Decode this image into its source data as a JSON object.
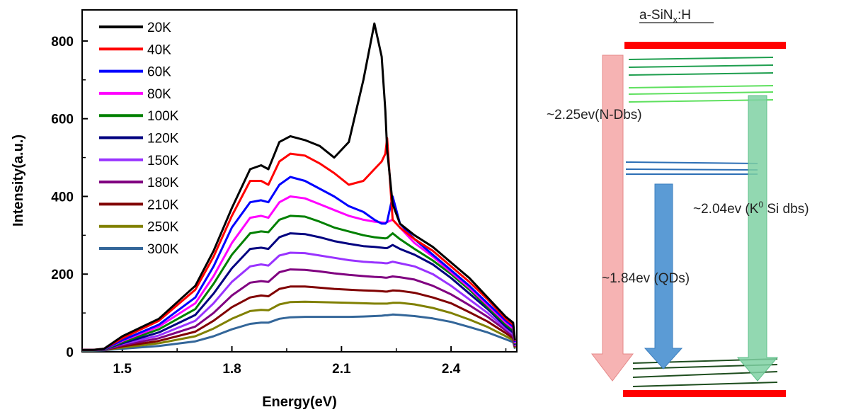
{
  "chart_data": {
    "type": "line",
    "xlabel": "Energy(eV)",
    "ylabel": "Intensity(a.u.)",
    "xlim": [
      1.39,
      2.58
    ],
    "ylim": [
      0,
      880
    ],
    "xticks": [
      "1.5",
      "1.8",
      "2.1",
      "2.4"
    ],
    "yticks": [
      "0",
      "200",
      "400",
      "600",
      "800"
    ],
    "x": [
      1.39,
      1.42,
      1.45,
      1.5,
      1.6,
      1.7,
      1.75,
      1.8,
      1.85,
      1.88,
      1.9,
      1.93,
      1.96,
      2.0,
      2.04,
      2.08,
      2.12,
      2.16,
      2.19,
      2.21,
      2.22,
      2.225,
      2.24,
      2.26,
      2.3,
      2.35,
      2.4,
      2.45,
      2.5,
      2.55,
      2.57,
      2.575
    ],
    "series": [
      {
        "name": "20K",
        "color": "#000000",
        "values": [
          5,
          5,
          8,
          40,
          85,
          170,
          260,
          370,
          470,
          480,
          470,
          540,
          555,
          545,
          530,
          500,
          540,
          700,
          845,
          760,
          620,
          520,
          380,
          330,
          300,
          270,
          230,
          190,
          140,
          90,
          75,
          30
        ]
      },
      {
        "name": "40K",
        "color": "#ff0000",
        "values": [
          5,
          5,
          8,
          35,
          80,
          160,
          245,
          350,
          440,
          440,
          430,
          490,
          510,
          505,
          485,
          460,
          430,
          440,
          470,
          490,
          510,
          550,
          340,
          320,
          290,
          260,
          220,
          180,
          135,
          85,
          70,
          28
        ]
      },
      {
        "name": "60K",
        "color": "#0000ff",
        "values": [
          5,
          5,
          7,
          30,
          70,
          140,
          220,
          320,
          385,
          390,
          385,
          430,
          450,
          440,
          420,
          400,
          375,
          360,
          340,
          330,
          330,
          335,
          400,
          330,
          290,
          250,
          210,
          170,
          125,
          80,
          65,
          25
        ]
      },
      {
        "name": "80K",
        "color": "#ff00ff",
        "values": [
          5,
          5,
          7,
          28,
          65,
          125,
          195,
          280,
          345,
          350,
          345,
          385,
          400,
          395,
          380,
          365,
          350,
          340,
          335,
          333,
          332,
          334,
          340,
          320,
          280,
          245,
          205,
          165,
          120,
          75,
          60,
          22
        ]
      },
      {
        "name": "100K",
        "color": "#008000",
        "values": [
          5,
          5,
          6,
          25,
          58,
          110,
          175,
          250,
          305,
          310,
          308,
          340,
          350,
          348,
          335,
          320,
          310,
          300,
          295,
          293,
          292,
          293,
          305,
          290,
          265,
          235,
          200,
          160,
          115,
          70,
          55,
          20
        ]
      },
      {
        "name": "120K",
        "color": "#000080",
        "values": [
          5,
          5,
          6,
          22,
          50,
          95,
          150,
          215,
          265,
          268,
          265,
          295,
          305,
          303,
          295,
          285,
          278,
          272,
          270,
          268,
          267,
          267,
          275,
          265,
          250,
          225,
          190,
          150,
          110,
          65,
          50,
          18
        ]
      },
      {
        "name": "150K",
        "color": "#9933ff",
        "values": [
          5,
          5,
          6,
          20,
          42,
          80,
          125,
          180,
          220,
          225,
          222,
          248,
          255,
          254,
          248,
          242,
          236,
          232,
          230,
          229,
          228,
          228,
          232,
          228,
          220,
          200,
          170,
          135,
          100,
          60,
          45,
          16
        ]
      },
      {
        "name": "180K",
        "color": "#800080",
        "values": [
          5,
          5,
          5,
          17,
          35,
          65,
          100,
          145,
          178,
          182,
          180,
          205,
          212,
          211,
          207,
          202,
          198,
          195,
          193,
          192,
          191,
          191,
          194,
          192,
          186,
          170,
          148,
          120,
          90,
          55,
          40,
          14
        ]
      },
      {
        "name": "210K",
        "color": "#800000",
        "values": [
          5,
          5,
          5,
          14,
          28,
          52,
          80,
          115,
          140,
          145,
          143,
          162,
          168,
          168,
          165,
          162,
          160,
          158,
          157,
          156,
          155,
          155,
          158,
          157,
          152,
          140,
          125,
          102,
          78,
          48,
          35,
          12
        ]
      },
      {
        "name": "250K",
        "color": "#808000",
        "values": [
          4,
          4,
          5,
          11,
          22,
          40,
          60,
          85,
          105,
          108,
          107,
          122,
          128,
          129,
          128,
          127,
          126,
          125,
          124,
          124,
          124,
          124,
          126,
          126,
          122,
          113,
          100,
          83,
          64,
          40,
          30,
          10
        ]
      },
      {
        "name": "300K",
        "color": "#336699",
        "values": [
          3,
          3,
          4,
          8,
          15,
          27,
          40,
          58,
          72,
          75,
          75,
          85,
          89,
          90,
          90,
          90,
          90,
          91,
          92,
          93,
          94,
          94,
          96,
          95,
          92,
          86,
          77,
          64,
          50,
          32,
          25,
          8
        ]
      }
    ]
  },
  "diagram": {
    "title_main": "a-SiN",
    "title_sub": "x",
    "title_tail": ":H",
    "label_nd": "~2.25ev(N-Dbs)",
    "label_qd": "~1.84ev (QDs)",
    "label_k_pre": "~2.04ev (K",
    "label_k_sup": "0",
    "label_k_post": " Si dbs)"
  },
  "colors": {
    "band_edge": "#ff0000",
    "nd_arrow": "#f4a6a6",
    "qd_arrow": "#5b9bd5",
    "k_arrow": "#7fd1a3",
    "green_dark": "#1e9e4e",
    "green_light": "#5ee05e",
    "blue_level": "#2d6fb5",
    "bottom_level": "#1e4d1e"
  }
}
